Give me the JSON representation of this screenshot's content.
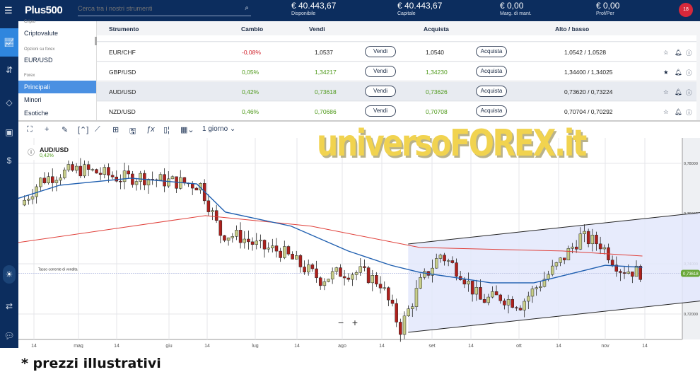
{
  "header": {
    "menu_icon": "hamburger-icon",
    "logo": "Plus500",
    "search_placeholder": "Cerca tra i nostri strumenti",
    "search_icon": "search-icon",
    "stats": [
      {
        "value": "€ 40.443,67",
        "label": "Disponibile"
      },
      {
        "value": "€ 40.443,67",
        "label": "Capitale"
      },
      {
        "value": "€ 0,00",
        "label": "Marg. di mant."
      },
      {
        "value": "€ 0,00",
        "label": "Prof/Per"
      }
    ],
    "notifications": "18"
  },
  "rail": {
    "icons": [
      "chart-icon",
      "exchange-icon",
      "tag-icon",
      "briefcase-icon",
      "dollar-icon",
      "theme-toggle-icon",
      "swap-icon",
      "chat-icon"
    ]
  },
  "sidebar": {
    "groups": [
      {
        "title": "Cripto",
        "items": [
          "Criptovalute"
        ]
      },
      {
        "title": "Opzioni su forex",
        "items": [
          "EUR/USD"
        ]
      },
      {
        "title": "Forex",
        "items": [
          "Principali",
          "Minori",
          "Esotiche"
        ]
      }
    ],
    "active": "Principali"
  },
  "table": {
    "columns": [
      "Strumento",
      "Cambio",
      "Vendi",
      "Acquista",
      "Alto / basso"
    ],
    "sell_label": "Vendi",
    "buy_label": "Acquista",
    "rows": [
      {
        "name": "EUR/CHF",
        "change": "-0,08%",
        "sell": "1,0537",
        "buy": "1,0540",
        "highlow": "1,0542 / 1,0528",
        "dir": "down",
        "fav": false
      },
      {
        "name": "GBP/USD",
        "change": "0,05%",
        "sell": "1,34217",
        "buy": "1,34230",
        "highlow": "1,34400 / 1,34025",
        "dir": "up",
        "fav": true
      },
      {
        "name": "AUD/USD",
        "change": "0,42%",
        "sell": "0,73618",
        "buy": "0,73626",
        "highlow": "0,73620 / 0,73224",
        "dir": "up",
        "fav": false,
        "selected": true
      },
      {
        "name": "NZD/USD",
        "change": "0,46%",
        "sell": "0,70686",
        "buy": "0,70708",
        "highlow": "0,70704 / 0,70292",
        "dir": "up",
        "fav": false
      }
    ]
  },
  "toolbar": {
    "icons": [
      "fullscreen-icon",
      "crosshair-icon",
      "draw-icon",
      "range-icon",
      "trend-icon",
      "layout-icon",
      "save-icon",
      "indicator-icon",
      "candle-type-icon",
      "calendar-icon"
    ],
    "timeframe": "1 giorno"
  },
  "chart_data": {
    "type": "candlestick",
    "instrument": "AUD/USD",
    "change": "0,42%",
    "current_price_label": "Tasso corrente di vendita",
    "current_price": "0,73618",
    "ylim": [
      0.71,
      0.785
    ],
    "yticks": [
      "0,72000",
      "0,74000",
      "0,76000",
      "0,78000"
    ],
    "xticks": [
      "14",
      "mag",
      "14",
      "giu",
      "14",
      "lug",
      "14",
      "ago",
      "14",
      "set",
      "14",
      "ott",
      "14",
      "nov",
      "14"
    ],
    "weekly_closes": [
      [
        "04-10",
        0.7634
      ],
      [
        "04-17",
        0.7732
      ],
      [
        "04-24",
        0.7761
      ],
      [
        "05-01",
        0.7775
      ],
      [
        "05-08",
        0.7761
      ],
      [
        "05-15",
        0.7741
      ],
      [
        "05-22",
        0.7746
      ],
      [
        "05-29",
        0.7732
      ],
      [
        "06-05",
        0.7724
      ],
      [
        "06-12",
        0.7713
      ],
      [
        "06-19",
        0.7521
      ],
      [
        "06-26",
        0.7507
      ],
      [
        "07-03",
        0.7465
      ],
      [
        "07-10",
        0.7451
      ],
      [
        "07-17",
        0.7394
      ],
      [
        "07-24",
        0.7338
      ],
      [
        "07-31",
        0.7366
      ],
      [
        "08-07",
        0.7366
      ],
      [
        "08-14",
        0.7324
      ],
      [
        "08-21",
        0.7141
      ],
      [
        "08-28",
        0.7324
      ],
      [
        "09-04",
        0.7437
      ],
      [
        "09-11",
        0.7366
      ],
      [
        "09-18",
        0.7254
      ],
      [
        "09-25",
        0.7268
      ],
      [
        "10-02",
        0.7239
      ],
      [
        "10-09",
        0.7324
      ],
      [
        "10-16",
        0.7408
      ],
      [
        "10-23",
        0.7507
      ],
      [
        "10-30",
        0.7479
      ],
      [
        "11-06",
        0.738
      ],
      [
        "11-13",
        0.7366
      ]
    ],
    "ma_fast": {
      "color": "#1f5fb0",
      "points": [
        [
          "04-05",
          0.7648
        ],
        [
          "04-23",
          0.7713
        ],
        [
          "05-18",
          0.7741
        ],
        [
          "06-10",
          0.7718
        ],
        [
          "06-20",
          0.7606
        ],
        [
          "07-13",
          0.755
        ],
        [
          "08-02",
          0.7451
        ],
        [
          "08-17",
          0.7394
        ],
        [
          "08-27",
          0.7366
        ],
        [
          "09-21",
          0.7324
        ],
        [
          "10-06",
          0.7324
        ],
        [
          "10-21",
          0.7366
        ],
        [
          "10-31",
          0.7394
        ],
        [
          "11-13",
          0.7386
        ]
      ]
    },
    "ma_slow": {
      "color": "#e0403a",
      "points": [
        [
          "04-05",
          0.7479
        ],
        [
          "06-13",
          0.7592
        ],
        [
          "07-20",
          0.755
        ],
        [
          "08-27",
          0.7465
        ],
        [
          "10-16",
          0.7451
        ],
        [
          "11-13",
          0.7431
        ]
      ]
    },
    "channel": {
      "color": "#e3e8fb",
      "upper": [
        [
          "08-23",
          0.7479
        ],
        [
          "12-05",
          0.7606
        ]
      ],
      "lower": [
        [
          "08-23",
          0.7127
        ],
        [
          "12-05",
          0.7254
        ]
      ]
    },
    "up_color": "#c9cf8a",
    "down_color": "#b0201c",
    "zoom_out": "−",
    "zoom_in": "+"
  },
  "watermark": "universoFOREX.it",
  "footer": "* prezzi illustrativi"
}
